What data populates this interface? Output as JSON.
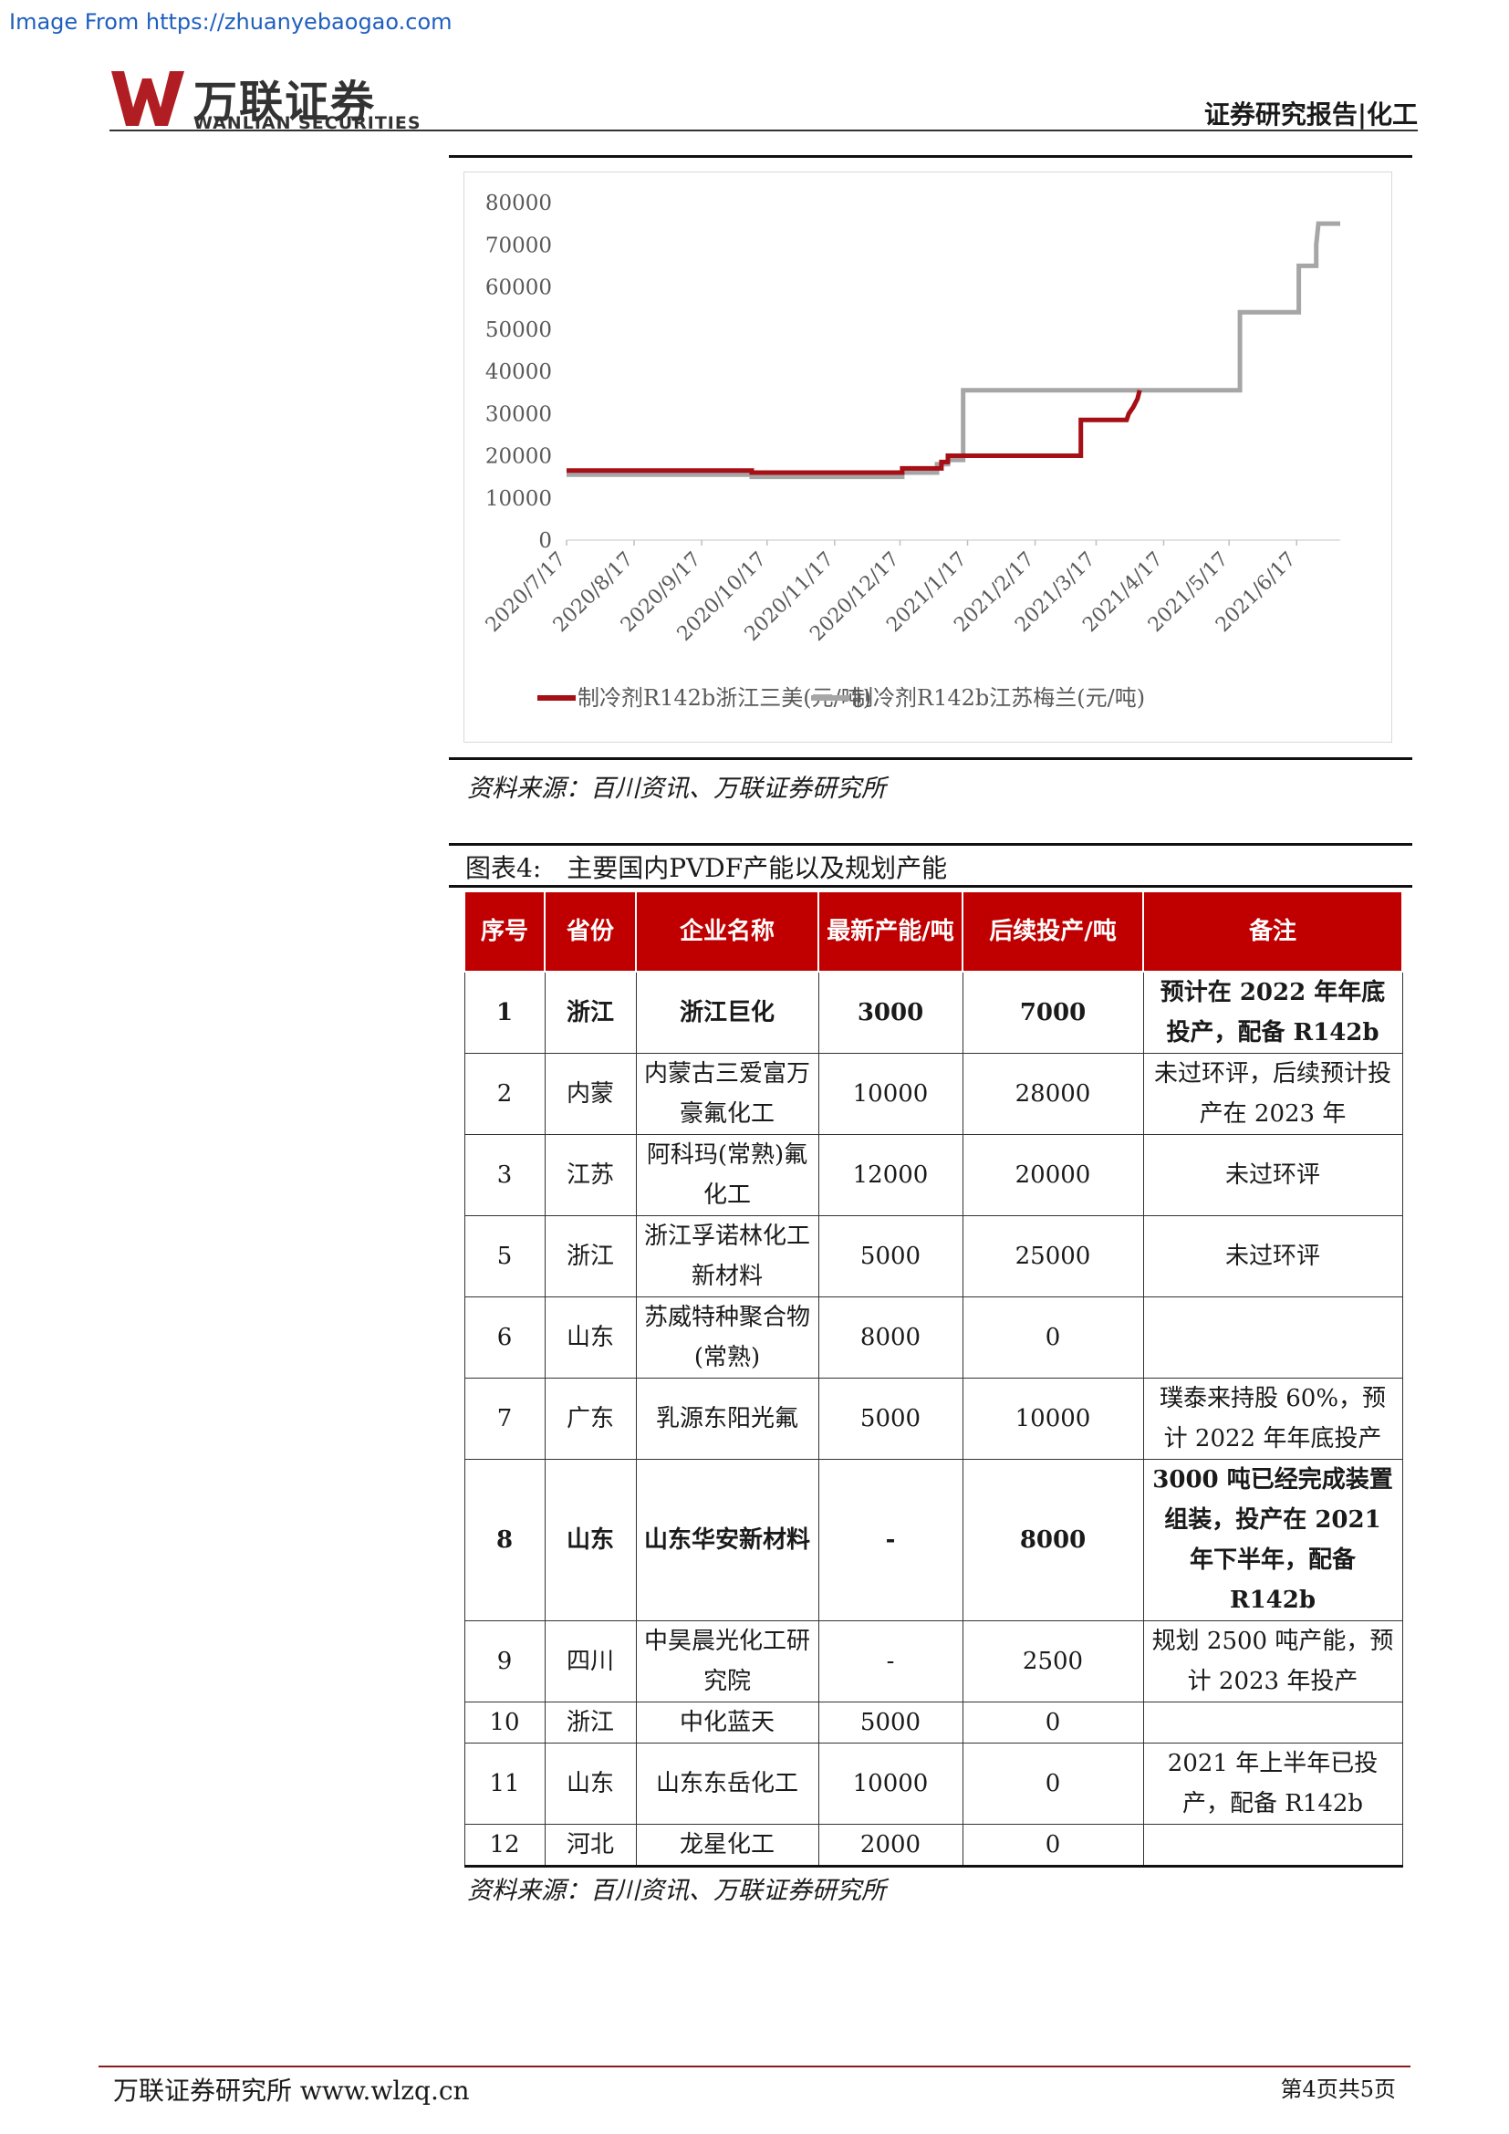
{
  "watermark": "Image From https://zhuanyebaogao.com",
  "header": {
    "logo_cn": "万联证券",
    "logo_en": "WANLIAN SECURITIES",
    "right_text": "证券研究报告|化工",
    "brand_color": "#b01e23"
  },
  "chart_data": {
    "type": "line",
    "title": "",
    "xlabel": "",
    "ylabel": "",
    "ylim": [
      0,
      80000
    ],
    "yticks": [
      "80000",
      "70000",
      "60000",
      "50000",
      "40000",
      "30000",
      "20000",
      "10000",
      "0"
    ],
    "xticks": [
      "2020/7/17",
      "2020/8/17",
      "2020/9/17",
      "2020/10/17",
      "2020/11/17",
      "2020/12/17",
      "2021/1/17",
      "2021/2/17",
      "2021/3/17",
      "2021/4/17",
      "2021/5/17",
      "2021/6/17"
    ],
    "grid": false,
    "legend": "bottom",
    "series": [
      {
        "name": "制冷剂R142b浙江三美(元/吨)",
        "color": "#a50f15",
        "points": [
          [
            "2020/7/17",
            16500
          ],
          [
            "2020/10/10",
            16500
          ],
          [
            "2020/10/10",
            16000
          ],
          [
            "2020/12/18",
            16000
          ],
          [
            "2020/12/18",
            17000
          ],
          [
            "2021/1/5",
            17000
          ],
          [
            "2021/1/5",
            18500
          ],
          [
            "2021/1/8",
            18500
          ],
          [
            "2021/1/8",
            20000
          ],
          [
            "2021/3/10",
            20000
          ],
          [
            "2021/3/10",
            28500
          ],
          [
            "2021/3/31",
            28500
          ],
          [
            "2021/4/1",
            30000
          ],
          [
            "2021/4/3",
            31500
          ],
          [
            "2021/4/5",
            33500
          ],
          [
            "2021/4/6",
            35500
          ]
        ]
      },
      {
        "name": "制冷剂R142b江苏梅兰(元/吨)",
        "color": "#a6a6a6",
        "points": [
          [
            "2020/7/17",
            15500
          ],
          [
            "2020/10/10",
            15500
          ],
          [
            "2020/10/10",
            15000
          ],
          [
            "2020/12/18",
            15000
          ],
          [
            "2020/12/18",
            16000
          ],
          [
            "2021/1/3",
            16000
          ],
          [
            "2021/1/3",
            18000
          ],
          [
            "2021/1/8",
            18000
          ],
          [
            "2021/1/8",
            19000
          ],
          [
            "2021/1/15",
            19000
          ],
          [
            "2021/1/15",
            35500
          ],
          [
            "2021/5/22",
            35500
          ],
          [
            "2021/5/22",
            54000
          ],
          [
            "2021/6/18",
            54000
          ],
          [
            "2021/6/18",
            65000
          ],
          [
            "2021/6/26",
            65000
          ],
          [
            "2021/6/26",
            70000
          ],
          [
            "2021/6/27",
            75000
          ],
          [
            "2021/7/7",
            75000
          ]
        ]
      }
    ]
  },
  "chart_source": "资料来源：百川资讯、万联证券研究所",
  "figure_title": "图表4:　主要国内PVDF产能以及规划产能",
  "table": {
    "headers": [
      "序号",
      "省份",
      "企业名称",
      "最新产能/吨",
      "后续投产/吨",
      "备注"
    ],
    "rows": [
      {
        "bold": true,
        "cells": [
          "1",
          "浙江",
          "浙江巨化",
          "3000",
          "7000",
          "预计在 2022 年年底投产，配备 R142b"
        ]
      },
      {
        "bold": false,
        "cells": [
          "2",
          "内蒙",
          "内蒙古三爱富万豪氟化工",
          "10000",
          "28000",
          "未过环评，后续预计投产在 2023 年"
        ]
      },
      {
        "bold": false,
        "cells": [
          "3",
          "江苏",
          "阿科玛(常熟)氟化工",
          "12000",
          "20000",
          "未过环评"
        ]
      },
      {
        "bold": false,
        "cells": [
          "5",
          "浙江",
          "浙江孚诺林化工新材料",
          "5000",
          "25000",
          "未过环评"
        ]
      },
      {
        "bold": false,
        "cells": [
          "6",
          "山东",
          "苏威特种聚合物(常熟)",
          "8000",
          "0",
          ""
        ]
      },
      {
        "bold": false,
        "cells": [
          "7",
          "广东",
          "乳源东阳光氟",
          "5000",
          "10000",
          "璞泰来持股 60%，预计 2022 年年底投产"
        ]
      },
      {
        "bold": true,
        "cells": [
          "8",
          "山东",
          "山东华安新材料",
          "-",
          "8000",
          "3000 吨已经完成装置组装，投产在 2021 年下半年，配备 R142b"
        ]
      },
      {
        "bold": false,
        "cells": [
          "9",
          "四川",
          "中昊晨光化工研究院",
          "-",
          "2500",
          "规划 2500 吨产能，预计 2023 年投产"
        ]
      },
      {
        "bold": false,
        "cells": [
          "10",
          "浙江",
          "中化蓝天",
          "5000",
          "0",
          ""
        ]
      },
      {
        "bold": false,
        "cells": [
          "11",
          "山东",
          "山东东岳化工",
          "10000",
          "0",
          "2021 年上半年已投产，配备 R142b"
        ]
      },
      {
        "bold": false,
        "cells": [
          "12",
          "河北",
          "龙星化工",
          "2000",
          "0",
          ""
        ]
      }
    ]
  },
  "table_source": "资料来源：百川资讯、万联证券研究所",
  "footer": {
    "left": "万联证券研究所  www.wlzq.cn",
    "right": "第4页共5页"
  }
}
